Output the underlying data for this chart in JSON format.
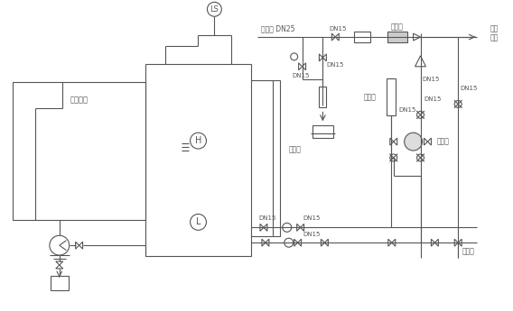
{
  "bg_color": "#ffffff",
  "line_color": "#555555",
  "text_color": "#555555",
  "labels": {
    "gaoweimanliu": "高位溢流",
    "yeweiguan": "液位管",
    "liuliangji": "流量计",
    "jiliangbeng": "计量泵",
    "shuisheqi": "水射器",
    "zhixiaodudian": "至消\n毒点",
    "zilaishui_top": "自来水 DN25",
    "zilaishui_bot": "自来水",
    "DN15": "DN15",
    "DN25": "DN25",
    "LS": "LS",
    "H": "H",
    "L": "L"
  }
}
